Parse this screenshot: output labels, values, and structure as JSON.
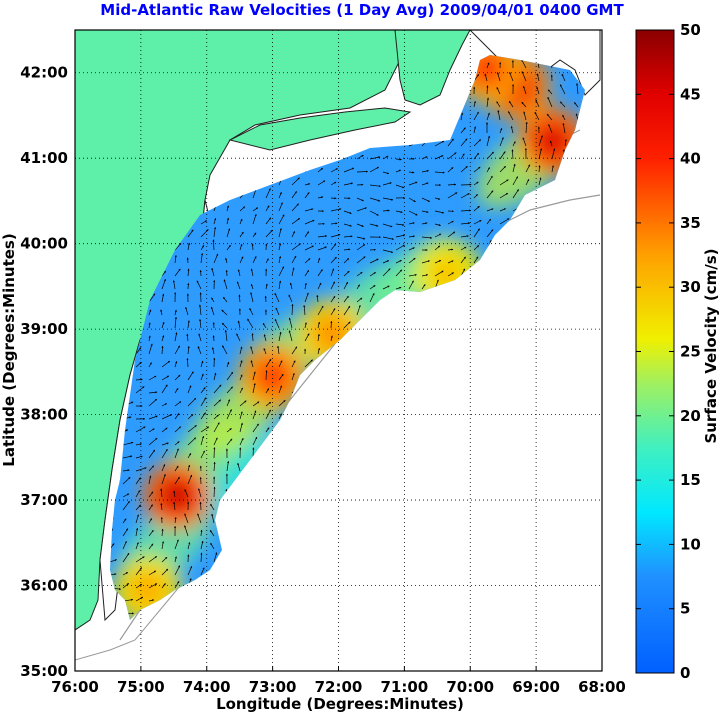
{
  "title": "Mid-Atlantic Raw Velocities (1 Day Avg) 2009/04/01 0400 GMT",
  "x_axis": {
    "label": "Longitude (Degrees:Minutes)",
    "ticks": [
      "76:00",
      "75:00",
      "74:00",
      "73:00",
      "72:00",
      "71:00",
      "70:00",
      "69:00",
      "68:00"
    ]
  },
  "y_axis": {
    "label": "Latitude (Degrees:Minutes)",
    "ticks": [
      "42:00",
      "41:00",
      "40:00",
      "39:00",
      "38:00",
      "37:00",
      "36:00",
      "35:00"
    ]
  },
  "colorbar": {
    "label": "Surface Velocity (cm/s)",
    "ticks": [
      "50",
      "45",
      "40",
      "35",
      "30",
      "25",
      "20",
      "15",
      "10",
      "5",
      "0"
    ]
  },
  "chart_data": {
    "type": "heatmap",
    "xlim": [
      -76,
      -68
    ],
    "ylim": [
      35,
      42.5
    ],
    "grid": true,
    "color_scale": {
      "min": 0,
      "max": 50,
      "units": "cm/s"
    },
    "land_color": "#5ef0a8",
    "hotspots": [
      {
        "lon": -74.45,
        "lat": 37.05,
        "speed": 47
      },
      {
        "lon": -73.0,
        "lat": 38.45,
        "speed": 40
      },
      {
        "lon": -72.1,
        "lat": 38.95,
        "speed": 34
      },
      {
        "lon": -70.35,
        "lat": 39.65,
        "speed": 30
      },
      {
        "lon": -68.75,
        "lat": 41.2,
        "speed": 46
      },
      {
        "lon": -69.3,
        "lat": 41.85,
        "speed": 44
      },
      {
        "lon": -69.75,
        "lat": 42.05,
        "speed": 40
      },
      {
        "lon": -74.9,
        "lat": 35.95,
        "speed": 32
      }
    ]
  }
}
